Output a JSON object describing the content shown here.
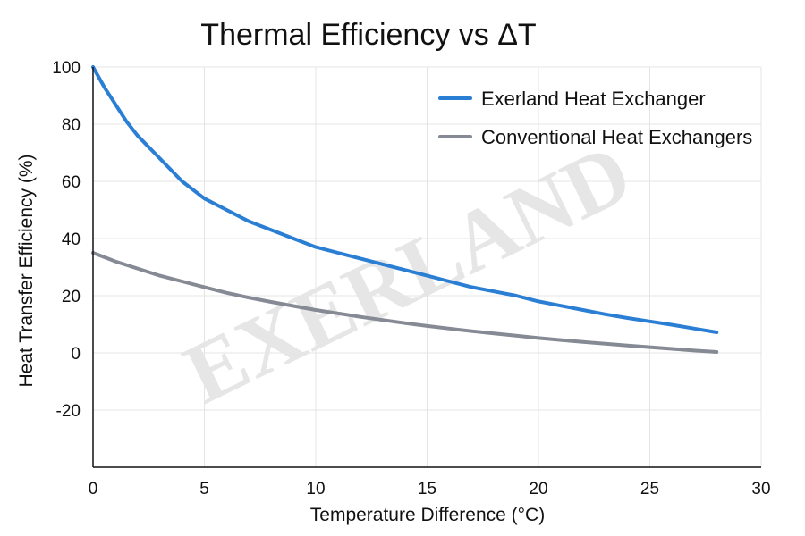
{
  "chart_data": {
    "type": "line",
    "title": "Thermal Efficiency vs ΔT",
    "xlabel": "Temperature Difference (°C)",
    "ylabel": "Heat Transfer Efficiency (%)",
    "xlim": [
      0,
      30
    ],
    "ylim": [
      -40,
      100
    ],
    "xticks": [
      0,
      5,
      10,
      15,
      20,
      25,
      30
    ],
    "yticks": [
      100,
      80,
      60,
      40,
      20,
      0,
      -20
    ],
    "grid": true,
    "legend_position": "top-right",
    "watermark": "EXERLAND",
    "series": [
      {
        "name": "Exerland Heat Exchanger",
        "color": "#2a7fd4",
        "x": [
          0,
          0.5,
          1,
          1.5,
          2,
          3,
          4,
          5,
          6,
          7,
          8,
          9,
          10,
          11,
          12,
          13,
          14,
          15,
          16,
          17,
          18,
          19,
          20,
          21,
          22,
          23,
          24,
          25,
          26,
          27,
          28
        ],
        "y": [
          100,
          93,
          87,
          81,
          76,
          68,
          60,
          54,
          50,
          46,
          43,
          40,
          37,
          35,
          33,
          31,
          29,
          27,
          25,
          23,
          21.5,
          20,
          18,
          16.5,
          15,
          13.5,
          12.2,
          11,
          9.8,
          8.5,
          7.2
        ]
      },
      {
        "name": "Conventional Heat Exchangers",
        "color": "#868a94",
        "x": [
          0,
          1,
          2,
          3,
          4,
          5,
          6,
          7,
          8,
          9,
          10,
          11,
          12,
          13,
          14,
          15,
          16,
          17,
          18,
          19,
          20,
          21,
          22,
          23,
          24,
          25,
          26,
          27,
          28
        ],
        "y": [
          35,
          32,
          29.5,
          27,
          25,
          23,
          21,
          19.3,
          17.8,
          16.4,
          15,
          13.8,
          12.6,
          11.5,
          10.4,
          9.4,
          8.5,
          7.6,
          6.8,
          6,
          5.2,
          4.5,
          3.8,
          3.2,
          2.6,
          2,
          1.4,
          0.8,
          0.3
        ]
      }
    ]
  }
}
